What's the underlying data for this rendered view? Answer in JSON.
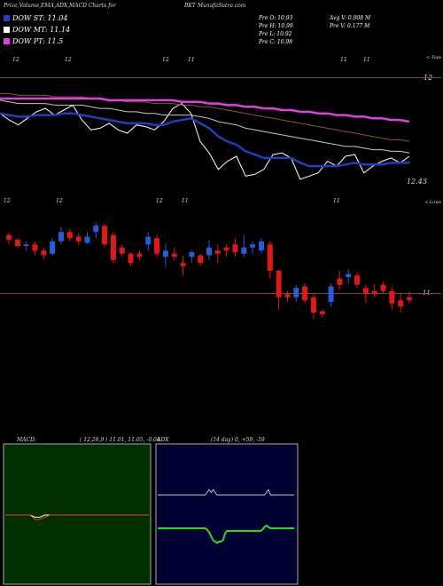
{
  "header": {
    "title": "Price,Volume,EMA,ADX,MACD Charts for",
    "ticker": "BKT",
    "site": "MunafaSutra.com"
  },
  "legend": [
    {
      "label": "DOW ST: 11.04",
      "color": "#1f3fbf"
    },
    {
      "label": "DOW MT: 11.14",
      "color": "#ffffff"
    },
    {
      "label": "DOW PT: 11.5",
      "color": "#e040e0"
    }
  ],
  "price_info": {
    "o": "Pre   O: 10.93",
    "h": "Pre   H: 10.99",
    "l": "Pre   L: 10.92",
    "c": "Pre   C: 10.98",
    "avg_v": "Avg V: 0.008  M",
    "pre_v": "Pre   V: 0.177 M"
  },
  "panels": {
    "tops_label": "<-Tops",
    "lows_label": "<-Lows",
    "ema_top_level": "12",
    "ema_bottom_level": "12.43",
    "candle_level": "11",
    "top_ticks": [
      "12",
      "12",
      "12",
      "11",
      "11",
      "11"
    ],
    "mid_ticks": [
      "12",
      "12",
      "12",
      "11",
      "11"
    ],
    "macd_label": "MACD:",
    "macd_params": "( 12,26,9 ) 11.01, 11.05, -0.04",
    "adx_label": "ADX",
    "adx_params": "(14  day) 0, +59, -59"
  },
  "chart_data": [
    {
      "type": "line",
      "name": "price-ema",
      "x": [
        1,
        2,
        3,
        4,
        5,
        6,
        7,
        8,
        9,
        10,
        11,
        12,
        13,
        14,
        15,
        16,
        17,
        18,
        19,
        20,
        21,
        22,
        23,
        24,
        25,
        26,
        27,
        28,
        29,
        30,
        31,
        32,
        33,
        34,
        35,
        36,
        37,
        38,
        39,
        40,
        41,
        42,
        43,
        44,
        45,
        46
      ],
      "series": [
        {
          "color": "#ffffff",
          "values": [
            11.22,
            11.18,
            11.15,
            11.19,
            11.23,
            11.25,
            11.21,
            11.24,
            11.27,
            11.18,
            11.12,
            11.13,
            11.16,
            11.12,
            11.1,
            11.15,
            11.14,
            11.12,
            11.17,
            11.25,
            11.28,
            11.22,
            11.05,
            10.98,
            10.88,
            10.93,
            10.96,
            10.84,
            10.85,
            10.88,
            10.97,
            10.98,
            10.95,
            10.82,
            10.84,
            10.86,
            10.93,
            10.9,
            10.96,
            10.97,
            10.86,
            10.9,
            10.93,
            10.95,
            10.92,
            10.96
          ]
        },
        {
          "color": "#1f3fbf",
          "values": [
            11.22,
            11.21,
            11.2,
            11.2,
            11.21,
            11.21,
            11.21,
            11.22,
            11.22,
            11.21,
            11.2,
            11.19,
            11.18,
            11.17,
            11.16,
            11.16,
            11.16,
            11.15,
            11.15,
            11.17,
            11.18,
            11.19,
            11.16,
            11.13,
            11.08,
            11.05,
            11.03,
            10.99,
            10.97,
            10.95,
            10.95,
            10.95,
            10.95,
            10.92,
            10.9,
            10.9,
            10.9,
            10.9,
            10.91,
            10.92,
            10.91,
            10.91,
            10.91,
            10.92,
            10.92,
            10.92
          ]
        },
        {
          "color": "#c8c8c8",
          "values": [
            11.3,
            11.29,
            11.28,
            11.28,
            11.28,
            11.28,
            11.27,
            11.27,
            11.27,
            11.27,
            11.26,
            11.25,
            11.25,
            11.24,
            11.23,
            11.23,
            11.22,
            11.22,
            11.21,
            11.21,
            11.21,
            11.21,
            11.2,
            11.19,
            11.17,
            11.16,
            11.15,
            11.13,
            11.12,
            11.11,
            11.1,
            11.09,
            11.08,
            11.07,
            11.06,
            11.05,
            11.04,
            11.03,
            11.02,
            11.02,
            11.01,
            11.0,
            11.0,
            10.99,
            10.99,
            10.98
          ]
        },
        {
          "color": "#8a5a2a",
          "values": [
            11.34,
            11.34,
            11.33,
            11.33,
            11.33,
            11.33,
            11.32,
            11.32,
            11.32,
            11.32,
            11.31,
            11.31,
            11.3,
            11.3,
            11.29,
            11.29,
            11.29,
            11.28,
            11.28,
            11.28,
            11.27,
            11.27,
            11.26,
            11.26,
            11.25,
            11.24,
            11.23,
            11.22,
            11.21,
            11.2,
            11.19,
            11.18,
            11.17,
            11.16,
            11.15,
            11.14,
            11.13,
            11.12,
            11.11,
            11.1,
            11.09,
            11.08,
            11.07,
            11.06,
            11.06,
            11.05
          ]
        },
        {
          "color": "#e040e0",
          "values": [
            11.31,
            11.31,
            11.31,
            11.31,
            11.31,
            11.31,
            11.31,
            11.31,
            11.31,
            11.31,
            11.31,
            11.31,
            11.3,
            11.3,
            11.3,
            11.3,
            11.3,
            11.3,
            11.3,
            11.3,
            11.29,
            11.29,
            11.29,
            11.28,
            11.28,
            11.27,
            11.27,
            11.26,
            11.26,
            11.25,
            11.25,
            11.24,
            11.24,
            11.23,
            11.23,
            11.22,
            11.22,
            11.21,
            11.21,
            11.2,
            11.2,
            11.19,
            11.19,
            11.18,
            11.18,
            11.17
          ]
        }
      ],
      "ylim": [
        10.75,
        11.45
      ]
    },
    {
      "type": "candlestick",
      "name": "price-candles",
      "ohlc": [
        [
          11.28,
          11.3,
          11.22,
          11.25
        ],
        [
          11.25,
          11.26,
          11.2,
          11.21
        ],
        [
          11.21,
          11.24,
          11.18,
          11.22
        ],
        [
          11.22,
          11.24,
          11.15,
          11.18
        ],
        [
          11.18,
          11.2,
          11.12,
          11.15
        ],
        [
          11.16,
          11.26,
          11.15,
          11.24
        ],
        [
          11.24,
          11.33,
          11.22,
          11.3
        ],
        [
          11.3,
          11.32,
          11.24,
          11.26
        ],
        [
          11.27,
          11.29,
          11.22,
          11.24
        ],
        [
          11.23,
          11.3,
          11.22,
          11.27
        ],
        [
          11.3,
          11.36,
          11.26,
          11.34
        ],
        [
          11.34,
          11.35,
          11.2,
          11.22
        ],
        [
          11.28,
          11.3,
          11.1,
          11.12
        ],
        [
          11.2,
          11.22,
          11.14,
          11.16
        ],
        [
          11.16,
          11.17,
          11.08,
          11.1
        ],
        [
          11.16,
          11.18,
          11.12,
          11.14
        ],
        [
          11.22,
          11.3,
          11.18,
          11.27
        ],
        [
          11.26,
          11.28,
          11.14,
          11.16
        ],
        [
          11.14,
          11.22,
          11.08,
          11.18
        ],
        [
          11.16,
          11.2,
          11.12,
          11.14
        ],
        [
          11.1,
          11.15,
          11.02,
          11.08
        ],
        [
          11.14,
          11.18,
          11.1,
          11.17
        ],
        [
          11.15,
          11.16,
          11.08,
          11.1
        ],
        [
          11.15,
          11.25,
          11.12,
          11.2
        ],
        [
          11.18,
          11.22,
          11.1,
          11.16
        ],
        [
          11.2,
          11.22,
          11.14,
          11.18
        ],
        [
          11.22,
          11.26,
          11.14,
          11.17
        ],
        [
          11.16,
          11.28,
          11.14,
          11.2
        ],
        [
          11.2,
          11.24,
          11.16,
          11.22
        ],
        [
          11.18,
          11.26,
          11.16,
          11.24
        ],
        [
          11.22,
          11.24,
          11.0,
          11.05
        ],
        [
          11.05,
          11.06,
          10.8,
          10.88
        ],
        [
          10.9,
          10.92,
          10.85,
          10.88
        ],
        [
          10.88,
          10.96,
          10.85,
          10.94
        ],
        [
          10.95,
          10.97,
          10.84,
          10.86
        ],
        [
          10.88,
          10.9,
          10.74,
          10.78
        ],
        [
          10.79,
          10.8,
          10.75,
          10.77
        ],
        [
          10.85,
          10.97,
          10.82,
          10.95
        ],
        [
          11.0,
          11.05,
          10.93,
          10.96
        ],
        [
          11.01,
          11.06,
          10.97,
          11.03
        ],
        [
          11.02,
          11.04,
          10.94,
          10.96
        ],
        [
          10.94,
          10.96,
          10.84,
          10.9
        ],
        [
          10.92,
          10.96,
          10.88,
          10.9
        ],
        [
          10.96,
          10.98,
          10.9,
          10.92
        ],
        [
          10.92,
          10.95,
          10.8,
          10.84
        ],
        [
          10.86,
          10.9,
          10.78,
          10.82
        ],
        [
          10.88,
          10.92,
          10.84,
          10.86
        ]
      ],
      "level": 11,
      "ylim": [
        10.65,
        11.45
      ]
    },
    {
      "type": "line",
      "name": "macd",
      "title": "MACD:",
      "series": [
        {
          "color": "#ffffff",
          "values": [
            0.0,
            0.0,
            0.0,
            0.0,
            0.0,
            0.0,
            -0.01,
            -0.01,
            0.0,
            0.0,
            0.0,
            0.0,
            0.0,
            0.0,
            0.0,
            0.0,
            0.0,
            0.0,
            0.0,
            0.0,
            0.0,
            0.0,
            0.0,
            0.0,
            0.0,
            0.0,
            0.0,
            0.0,
            0.0,
            0.0
          ]
        },
        {
          "color": "#ff3030",
          "values": [
            0.0,
            0.0,
            0.0,
            0.0,
            0.0,
            0.0,
            -0.02,
            -0.02,
            -0.01,
            0.0,
            0.0,
            0.0,
            0.0,
            0.0,
            0.0,
            0.0,
            0.0,
            0.0,
            0.0,
            0.0,
            0.0,
            0.0,
            0.0,
            0.0,
            0.0,
            0.0,
            0.0,
            0.0,
            0.0,
            0.0
          ]
        }
      ],
      "ylim": [
        -0.3,
        0.3
      ]
    },
    {
      "type": "line",
      "name": "adx",
      "title": "ADX",
      "series": [
        {
          "color": "#c0c0c0",
          "values": [
            30,
            30,
            30,
            30,
            30,
            30,
            30,
            30,
            30,
            30,
            30,
            30,
            30,
            30,
            30,
            30,
            30,
            30,
            30,
            30,
            30,
            30,
            30,
            30,
            30,
            34,
            38,
            34,
            38,
            34,
            30,
            30,
            30,
            30,
            30,
            30,
            30,
            30,
            30,
            30,
            30,
            30,
            30,
            30,
            30,
            30,
            30,
            30,
            30,
            30,
            30,
            30,
            30,
            30,
            30,
            34,
            38,
            30,
            30,
            30,
            30,
            30,
            30,
            30,
            30,
            30,
            30,
            30,
            30,
            30
          ]
        },
        {
          "color": "#22dd22",
          "values": [
            -20,
            -20,
            -20,
            -20,
            -20,
            -20,
            -20,
            -20,
            -20,
            -20,
            -20,
            -20,
            -20,
            -20,
            -20,
            -20,
            -20,
            -20,
            -20,
            -20,
            -20,
            -20,
            -20,
            -20,
            -20,
            -22,
            -26,
            -32,
            -38,
            -40,
            -42,
            -40,
            -40,
            -38,
            -28,
            -24,
            -24,
            -24,
            -24,
            -24,
            -24,
            -24,
            -24,
            -24,
            -24,
            -24,
            -24,
            -24,
            -24,
            -24,
            -24,
            -24,
            -24,
            -22,
            -18,
            -16,
            -18,
            -20,
            -20,
            -20,
            -20,
            -20,
            -20,
            -20,
            -20,
            -20,
            -20,
            -20,
            -20,
            -20
          ]
        }
      ],
      "ylim": [
        -100,
        100
      ]
    }
  ]
}
